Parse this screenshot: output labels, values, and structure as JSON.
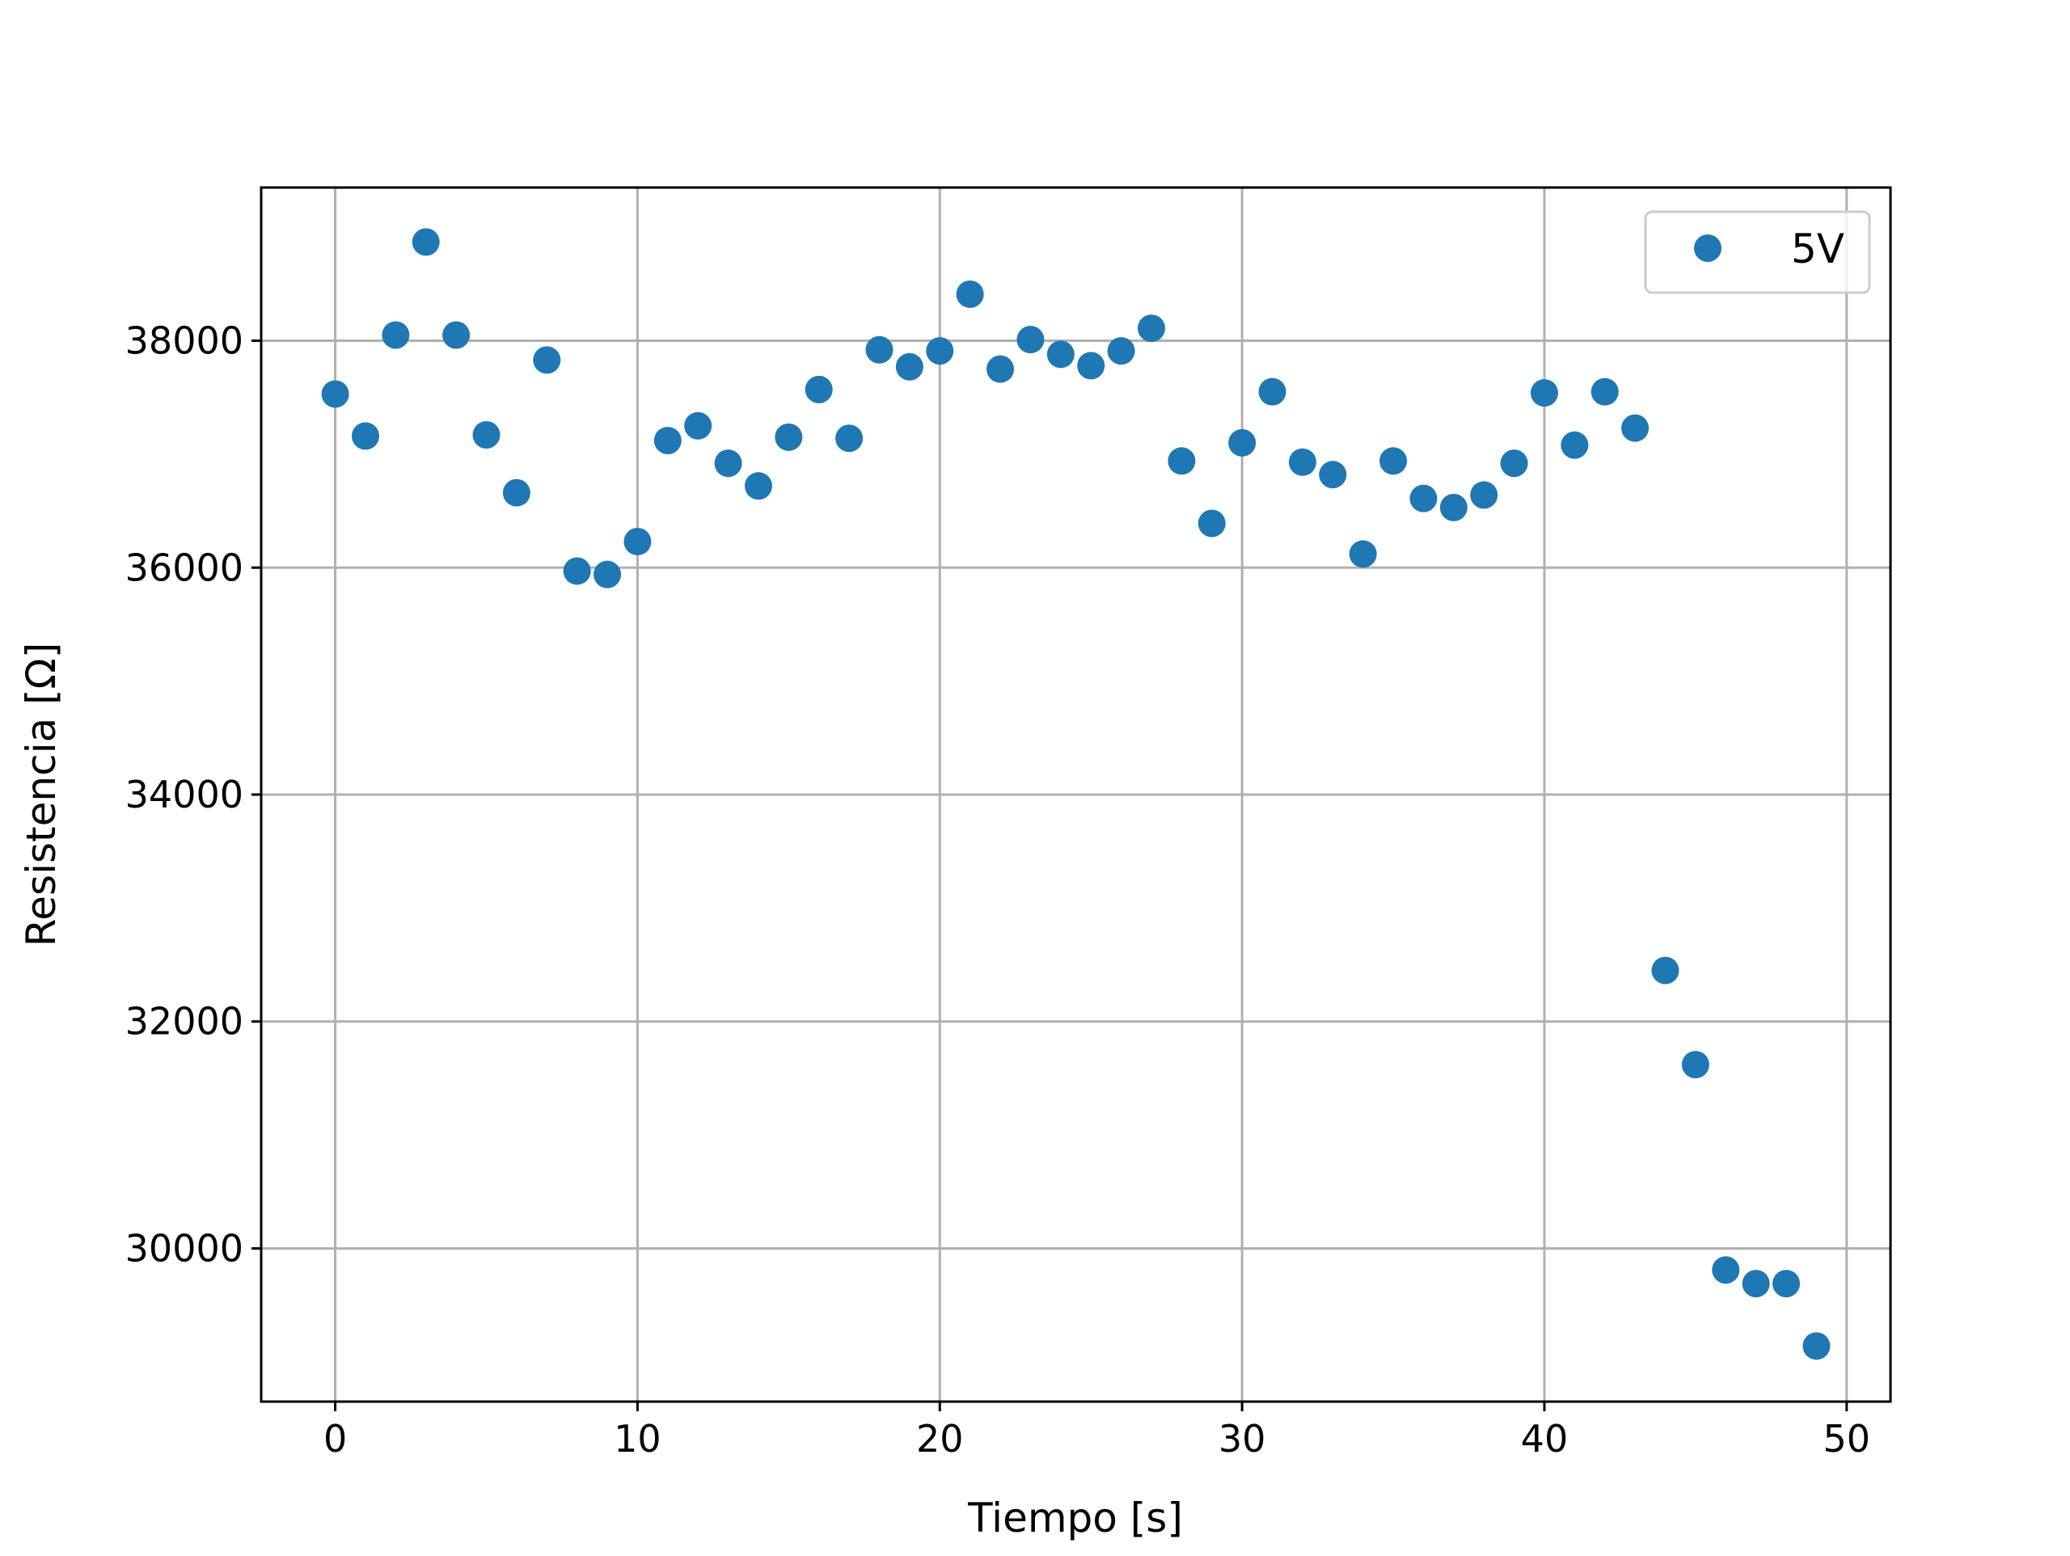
{
  "chart_data": {
    "type": "scatter",
    "title": "",
    "xlabel": "Tiempo [s]",
    "ylabel": "Resistencia [Ω]",
    "xlim": [
      -2.45,
      51.45
    ],
    "ylim": [
      28650,
      39350
    ],
    "xticks": [
      0,
      10,
      20,
      30,
      40,
      50
    ],
    "yticks": [
      30000,
      32000,
      34000,
      36000,
      38000
    ],
    "grid": true,
    "legend_position": "top-right",
    "series": [
      {
        "name": "5V",
        "color": "#1f77b4",
        "x": [
          0,
          1,
          2,
          3,
          4,
          5,
          6,
          7,
          8,
          9,
          10,
          11,
          12,
          13,
          14,
          15,
          16,
          17,
          18,
          19,
          20,
          21,
          22,
          23,
          24,
          25,
          26,
          27,
          28,
          29,
          30,
          31,
          32,
          33,
          34,
          35,
          36,
          37,
          38,
          39,
          40,
          41,
          42,
          43,
          44,
          45,
          46,
          47,
          48,
          49
        ],
        "y": [
          37530,
          37160,
          38050,
          38870,
          38050,
          37170,
          36660,
          37830,
          35970,
          35940,
          36230,
          37120,
          37250,
          36920,
          36720,
          37150,
          37570,
          37140,
          37920,
          37770,
          37910,
          38410,
          37750,
          38010,
          37880,
          37780,
          37910,
          38110,
          36940,
          36390,
          37100,
          37550,
          36930,
          36820,
          36120,
          36940,
          36610,
          36530,
          36640,
          36920,
          37540,
          37080,
          37550,
          37230,
          32450,
          31620,
          29810,
          29690,
          29690,
          29140
        ]
      }
    ]
  }
}
